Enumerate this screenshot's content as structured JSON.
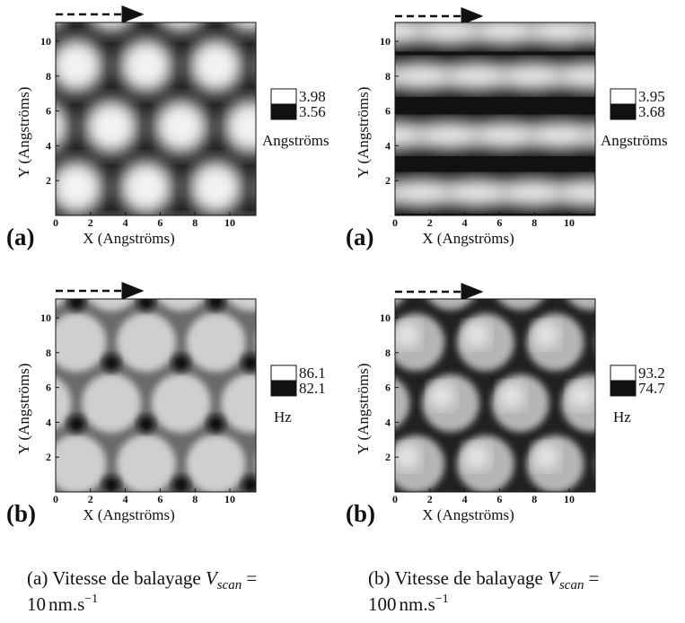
{
  "panels": [
    {
      "tag": "(a)",
      "x_label": "X (Angströms)",
      "y_label": "Y (Angströms)",
      "xticks": [
        0,
        2,
        4,
        6,
        8,
        10
      ],
      "yticks": [
        2,
        4,
        6,
        8,
        10
      ],
      "colorbar": {
        "max": 3.98,
        "min": 3.56,
        "unit": "Angströms"
      }
    },
    {
      "tag": "(a)",
      "x_label": "X (Angströms)",
      "y_label": "Y (Angströms)",
      "xticks": [
        0,
        2,
        4,
        6,
        8,
        10
      ],
      "yticks": [
        2,
        4,
        6,
        8,
        10
      ],
      "colorbar": {
        "max": 3.95,
        "min": 3.68,
        "unit": "Angströms"
      }
    },
    {
      "tag": "(b)",
      "x_label": "X (Angströms)",
      "y_label": "Y (Angströms)",
      "xticks": [
        0,
        2,
        4,
        6,
        8,
        10
      ],
      "yticks": [
        2,
        4,
        6,
        8,
        10
      ],
      "colorbar": {
        "max": 86.1,
        "min": 82.1,
        "unit": "Hz"
      }
    },
    {
      "tag": "(b)",
      "x_label": "X (Angströms)",
      "y_label": "Y (Angströms)",
      "xticks": [
        0,
        2,
        4,
        6,
        8,
        10
      ],
      "yticks": [
        2,
        4,
        6,
        8,
        10
      ],
      "colorbar": {
        "max": 93.2,
        "min": 74.7,
        "unit": "Hz"
      }
    }
  ],
  "captions": [
    {
      "tag": "(a)",
      "text": "Vitesse de balayage",
      "symbol": "V",
      "subscript": "scan",
      "equals": "=",
      "value": "10",
      "unit": "nm.s",
      "exponent": "−1"
    },
    {
      "tag": "(b)",
      "text": "Vitesse de balayage",
      "symbol": "V",
      "subscript": "scan",
      "equals": "=",
      "value": "100",
      "unit": "nm.s",
      "exponent": "−1"
    }
  ]
}
